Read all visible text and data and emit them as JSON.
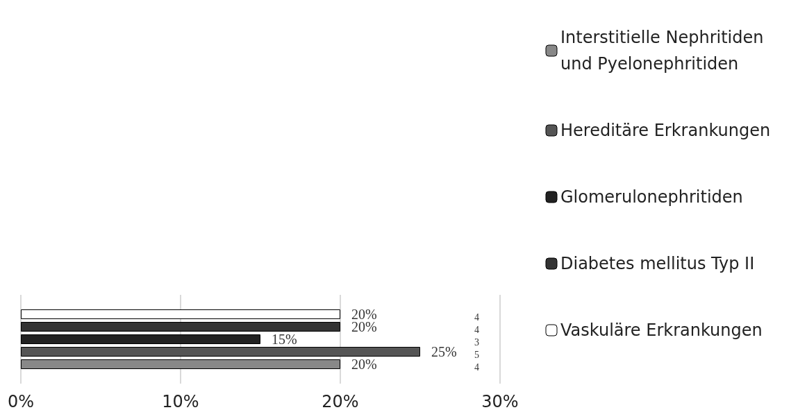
{
  "chart_data": {
    "type": "bar",
    "orientation": "horizontal",
    "categories": [
      null
    ],
    "series": [
      {
        "name": "Vaskuläre Erkrankungen",
        "color": "#ffffff",
        "values": [
          20
        ],
        "value_labels": [
          "20%"
        ]
      },
      {
        "name": "Diabetes mellitus Typ II",
        "color": "#333333",
        "values": [
          20
        ],
        "value_labels": [
          "20%"
        ]
      },
      {
        "name": "Glomerulonephritiden",
        "color": "#222222",
        "values": [
          15
        ],
        "value_labels": [
          "15%"
        ]
      },
      {
        "name": "Hereditäre Erkrankungen",
        "color": "#555555",
        "values": [
          25
        ],
        "value_labels": [
          "25%"
        ]
      },
      {
        "name": "Interstitielle Nephritiden und Pyelonephritiden",
        "color": "#888888",
        "values": [
          20
        ],
        "value_labels": [
          "20%"
        ]
      }
    ],
    "xlim": [
      0,
      30
    ],
    "xticks": [
      {
        "value": 0,
        "label": "0%"
      },
      {
        "value": 10,
        "label": "10%"
      },
      {
        "value": 20,
        "label": "20%"
      },
      {
        "value": 30,
        "label": "30%"
      }
    ],
    "grid": "x",
    "legend": "right",
    "annotations": [
      "4",
      "4",
      "3",
      "5",
      "4"
    ]
  }
}
